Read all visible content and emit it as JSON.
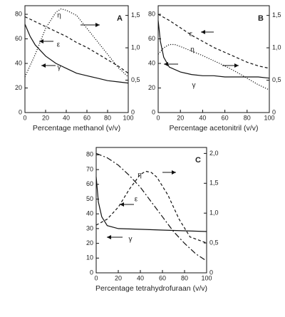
{
  "chart_data": [
    {
      "type": "line",
      "annotation": "A",
      "xlabel": "Percentage methanol (v/v)",
      "xlim": [
        0,
        100
      ],
      "xticks": [
        0,
        20,
        40,
        60,
        80,
        100
      ],
      "ylim": [
        0,
        87
      ],
      "yticks": [
        0,
        20,
        40,
        60,
        80
      ],
      "y2lim": [
        0,
        1.65
      ],
      "y2ticks": [
        0,
        {
          "value": 0.5,
          "label": "0,5"
        },
        {
          "value": 1.0,
          "label": "1,0"
        },
        {
          "value": 1.5,
          "label": "1,5"
        }
      ],
      "series": [
        {
          "name": "γ",
          "color": "#111",
          "style": "solid",
          "axis": "y",
          "x": [
            0,
            5,
            10,
            20,
            30,
            40,
            50,
            60,
            70,
            80,
            90,
            100
          ],
          "values": [
            72,
            62,
            55,
            46,
            40,
            36,
            32,
            30,
            28,
            26,
            25,
            24
          ]
        },
        {
          "name": "ε",
          "color": "#111",
          "style": "dashed",
          "axis": "y",
          "x": [
            0,
            10,
            20,
            30,
            40,
            50,
            60,
            70,
            80,
            90,
            100
          ],
          "values": [
            78,
            74,
            70,
            66,
            62,
            57,
            53,
            48,
            43,
            38,
            32
          ]
        },
        {
          "name": "η",
          "color": "#111",
          "style": "dotted",
          "axis": "y2",
          "x": [
            0,
            10,
            20,
            30,
            35,
            40,
            50,
            60,
            70,
            80,
            90,
            100
          ],
          "values": [
            0.55,
            0.9,
            1.3,
            1.55,
            1.6,
            1.58,
            1.5,
            1.3,
            1.1,
            0.9,
            0.7,
            0.55
          ]
        }
      ]
    },
    {
      "type": "line",
      "annotation": "B",
      "xlabel": "Percentage acetonitril (v/v)",
      "xlim": [
        0,
        100
      ],
      "xticks": [
        0,
        20,
        40,
        60,
        80,
        100
      ],
      "ylim": [
        0,
        87
      ],
      "yticks": [
        0,
        20,
        40,
        60,
        80
      ],
      "y2lim": [
        0,
        1.65
      ],
      "y2ticks": [
        0,
        {
          "value": 0.5,
          "label": "0,5"
        },
        {
          "value": 1.0,
          "label": "1,0"
        },
        {
          "value": 1.5,
          "label": "1,5"
        }
      ],
      "series": [
        {
          "name": "γ",
          "color": "#111",
          "style": "solid",
          "axis": "y",
          "x": [
            0,
            2,
            5,
            10,
            20,
            30,
            40,
            50,
            60,
            70,
            80,
            90,
            100
          ],
          "values": [
            75,
            58,
            45,
            37,
            33,
            31,
            30,
            30,
            29,
            29,
            29,
            29,
            28
          ]
        },
        {
          "name": "ε",
          "color": "#111",
          "style": "dashed",
          "axis": "y",
          "x": [
            0,
            10,
            20,
            30,
            40,
            50,
            60,
            70,
            80,
            90,
            100
          ],
          "values": [
            80,
            75,
            69,
            63,
            58,
            53,
            49,
            45,
            41,
            38,
            36
          ]
        },
        {
          "name": "η",
          "color": "#111",
          "style": "dotted",
          "axis": "y2",
          "x": [
            0,
            5,
            10,
            15,
            20,
            30,
            40,
            50,
            60,
            70,
            80,
            90,
            100
          ],
          "values": [
            0.9,
            1.0,
            1.05,
            1.05,
            1.02,
            0.95,
            0.88,
            0.8,
            0.72,
            0.63,
            0.53,
            0.43,
            0.35
          ]
        }
      ]
    },
    {
      "type": "line",
      "annotation": "C",
      "xlabel": "Percentage tetrahydrofuraan (v/v)",
      "xlim": [
        0,
        100
      ],
      "xticks": [
        0,
        20,
        40,
        60,
        80,
        100
      ],
      "ylim": [
        0,
        85
      ],
      "yticks": [
        0,
        10,
        20,
        30,
        40,
        50,
        60,
        70,
        80
      ],
      "y2lim": [
        0,
        2.1
      ],
      "y2ticks": [
        0,
        {
          "value": 0.5,
          "label": "0,5"
        },
        {
          "value": 1.0,
          "label": "1,0"
        },
        {
          "value": 1.5,
          "label": "1,5"
        },
        {
          "value": 2.0,
          "label": "2,0"
        }
      ],
      "series": [
        {
          "name": "γ",
          "color": "#111",
          "style": "solid",
          "axis": "y",
          "x": [
            0,
            2,
            5,
            10,
            20,
            40,
            60,
            80,
            100
          ],
          "values": [
            65,
            48,
            38,
            32,
            30,
            29.5,
            29,
            28.5,
            28
          ]
        },
        {
          "name": "ε",
          "color": "#111",
          "style": "dashdot",
          "axis": "y",
          "x": [
            0,
            10,
            20,
            30,
            40,
            50,
            60,
            70,
            80,
            90,
            100
          ],
          "values": [
            81,
            78,
            73,
            66,
            58,
            48,
            38,
            28,
            20,
            13,
            8
          ]
        },
        {
          "name": "η",
          "color": "#111",
          "style": "dashed",
          "axis": "y2",
          "x": [
            0,
            10,
            20,
            30,
            40,
            45,
            50,
            55,
            65,
            75,
            85,
            100
          ],
          "values": [
            0.8,
            0.9,
            1.1,
            1.4,
            1.65,
            1.7,
            1.68,
            1.6,
            1.3,
            0.9,
            0.6,
            0.5
          ]
        }
      ]
    }
  ]
}
